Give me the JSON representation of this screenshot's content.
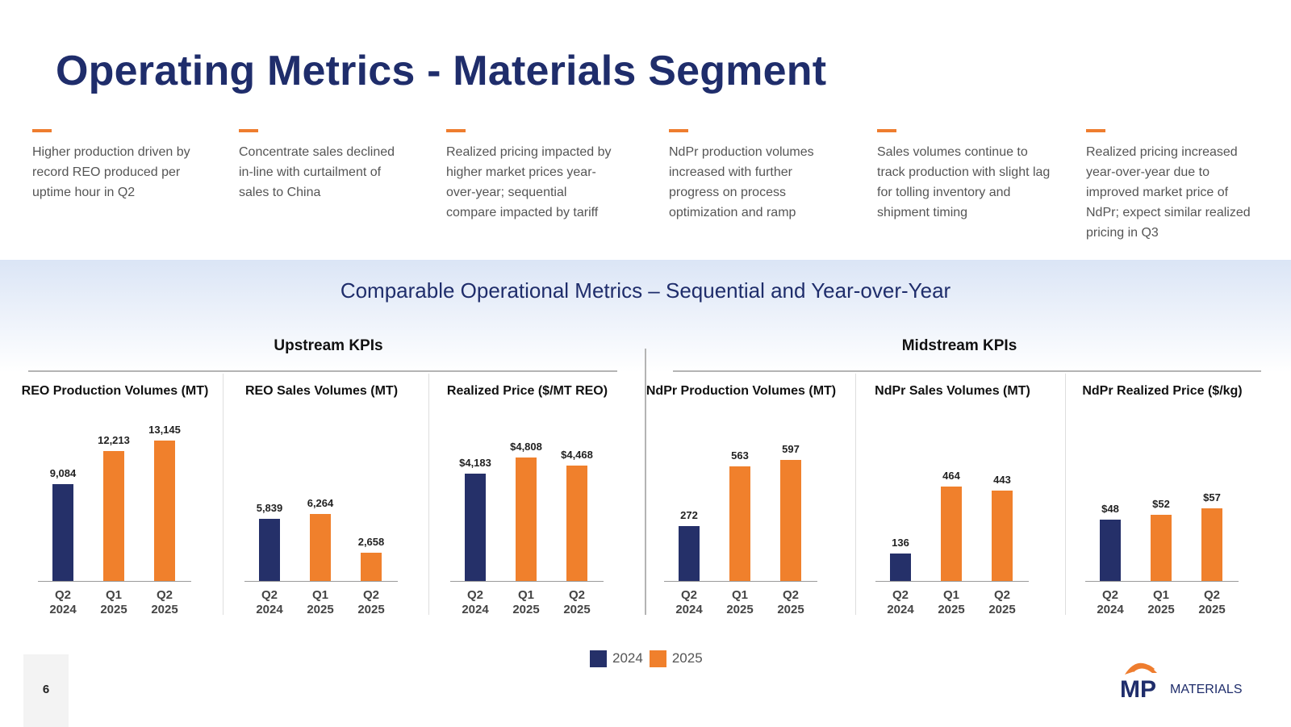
{
  "title": "Operating Metrics - Materials Segment",
  "bullets": [
    "Higher production driven by record REO produced per uptime hour in Q2",
    "Concentrate sales declined in-line with curtailment of sales to China",
    "Realized pricing impacted by higher market prices year-over-year; sequential compare impacted by tariff",
    "NdPr production volumes increased with further progress on process optimization and ramp",
    "Sales volumes continue to track production with slight lag for tolling inventory and shipment timing",
    "Realized pricing increased year-over-year due to improved market price of NdPr; expect similar realized pricing in Q3"
  ],
  "subtitle": "Comparable Operational Metrics – Sequential and Year-over-Year",
  "groups": {
    "upstream": "Upstream KPIs",
    "midstream": "Midstream KPIs"
  },
  "legend": {
    "label_2024": "2024",
    "label_2025": "2025"
  },
  "colors": {
    "navy": "#253069",
    "orange": "#f0802c",
    "accent": "#ee7d2f",
    "title": "#1f2d6b"
  },
  "page_number": "6",
  "logo": {
    "mp": "MP",
    "materials": "MATERIALS"
  },
  "chart_data": [
    {
      "type": "bar",
      "title": "REO Production Volumes (MT)",
      "categories": [
        "Q2 2024",
        "Q1 2025",
        "Q2 2025"
      ],
      "values": [
        9084,
        12213,
        13145
      ],
      "labels": [
        "9,084",
        "12,213",
        "13,145"
      ],
      "ylim": [
        0,
        14000
      ]
    },
    {
      "type": "bar",
      "title": "REO Sales Volumes (MT)",
      "categories": [
        "Q2 2024",
        "Q1 2025",
        "Q2 2025"
      ],
      "values": [
        5839,
        6264,
        2658
      ],
      "labels": [
        "5,839",
        "6,264",
        "2,658"
      ],
      "ylim": [
        0,
        14000
      ]
    },
    {
      "type": "bar",
      "title": "Realized Price ($/MT REO)",
      "categories": [
        "Q2 2024",
        "Q1 2025",
        "Q2 2025"
      ],
      "values": [
        4183,
        4808,
        4468
      ],
      "labels": [
        "$4,183",
        "$4,808",
        "$4,468"
      ],
      "ylim": [
        0,
        5800
      ]
    },
    {
      "type": "bar",
      "title": "NdPr Production Volumes (MT)",
      "categories": [
        "Q2 2024",
        "Q1 2025",
        "Q2 2025"
      ],
      "values": [
        272,
        563,
        597
      ],
      "labels": [
        "272",
        "563",
        "597"
      ],
      "ylim": [
        0,
        735
      ]
    },
    {
      "type": "bar",
      "title": "NdPr Sales Volumes (MT)",
      "categories": [
        "Q2 2024",
        "Q1 2025",
        "Q2 2025"
      ],
      "values": [
        136,
        464,
        443
      ],
      "labels": [
        "136",
        "464",
        "443"
      ],
      "ylim": [
        0,
        735
      ]
    },
    {
      "type": "bar",
      "title": "NdPr Realized Price ($/kg)",
      "categories": [
        "Q2 2024",
        "Q1 2025",
        "Q2 2025"
      ],
      "values": [
        48,
        52,
        57
      ],
      "labels": [
        "$48",
        "$52",
        "$57"
      ],
      "ylim": [
        0,
        117
      ]
    }
  ]
}
